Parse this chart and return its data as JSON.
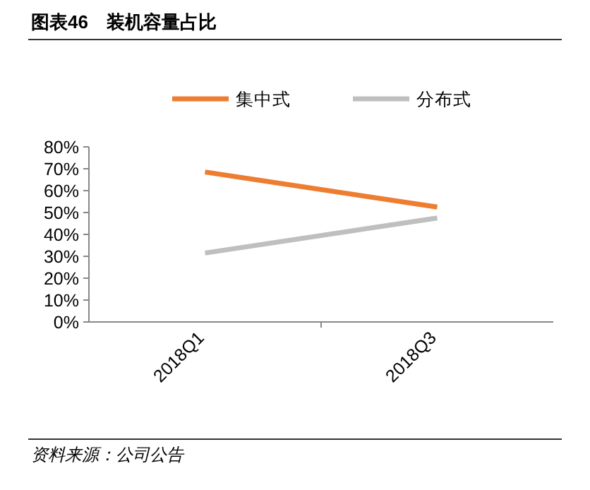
{
  "chart_data": {
    "type": "line",
    "title": "图表46　装机容量占比",
    "categories": [
      "2018Q1",
      "2018Q3"
    ],
    "series": [
      {
        "name": "集中式",
        "color": "#ed7d31",
        "values": [
          68.5,
          52.5
        ]
      },
      {
        "name": "分布式",
        "color": "#bfbfbf",
        "values": [
          31.5,
          47.5
        ]
      }
    ],
    "ylim": [
      0,
      80
    ],
    "yticks": [
      {
        "value": 0,
        "label": "0%"
      },
      {
        "value": 10,
        "label": "10%"
      },
      {
        "value": 20,
        "label": "20%"
      },
      {
        "value": 30,
        "label": "30%"
      },
      {
        "value": 40,
        "label": "40%"
      },
      {
        "value": 50,
        "label": "50%"
      },
      {
        "value": 60,
        "label": "60%"
      },
      {
        "value": 70,
        "label": "70%"
      },
      {
        "value": 80,
        "label": "80%"
      }
    ],
    "legend": "top",
    "annotations": [
      "资料来源：公司公告"
    ]
  }
}
